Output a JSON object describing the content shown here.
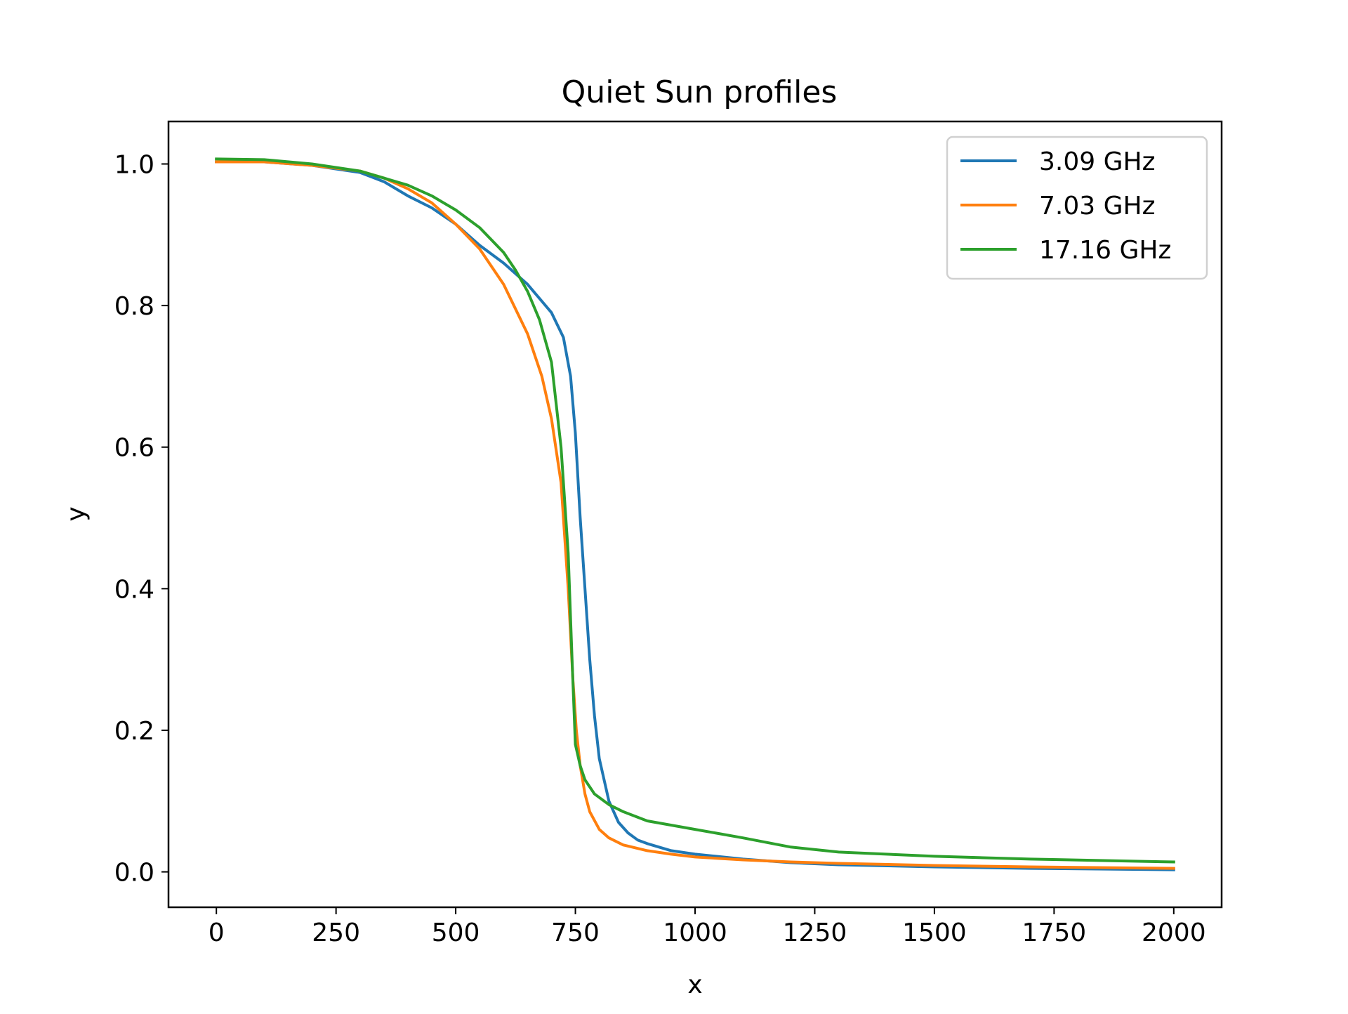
{
  "chart_data": {
    "type": "line",
    "title": "Quiet Sun profiles",
    "xlabel": "x",
    "ylabel": "y",
    "xlim": [
      -100,
      2100
    ],
    "ylim": [
      -0.05,
      1.06
    ],
    "xticks": [
      0,
      250,
      500,
      750,
      1000,
      1250,
      1500,
      1750,
      2000
    ],
    "xtick_labels": [
      "0",
      "250",
      "500",
      "750",
      "1000",
      "1250",
      "1500",
      "1750",
      "2000"
    ],
    "yticks": [
      0.0,
      0.2,
      0.4,
      0.6,
      0.8,
      1.0
    ],
    "ytick_labels": [
      "0.0",
      "0.2",
      "0.4",
      "0.6",
      "0.8",
      "1.0"
    ],
    "grid": false,
    "legend_position": "top-right",
    "series": [
      {
        "name": "3.09 GHz",
        "color": "#1f77b4",
        "x": [
          0,
          100,
          200,
          300,
          350,
          400,
          450,
          500,
          550,
          600,
          650,
          700,
          725,
          740,
          750,
          760,
          770,
          780,
          790,
          800,
          820,
          840,
          860,
          880,
          900,
          950,
          1000,
          1100,
          1200,
          1300,
          1500,
          1700,
          2000
        ],
        "y": [
          1.003,
          1.003,
          0.998,
          0.988,
          0.975,
          0.955,
          0.938,
          0.915,
          0.885,
          0.86,
          0.83,
          0.79,
          0.755,
          0.7,
          0.62,
          0.5,
          0.4,
          0.3,
          0.22,
          0.16,
          0.1,
          0.07,
          0.055,
          0.045,
          0.04,
          0.03,
          0.025,
          0.018,
          0.013,
          0.01,
          0.007,
          0.005,
          0.003
        ]
      },
      {
        "name": "7.03 GHz",
        "color": "#ff7f0e",
        "x": [
          0,
          100,
          200,
          300,
          350,
          400,
          450,
          500,
          550,
          600,
          650,
          680,
          700,
          720,
          735,
          745,
          752,
          760,
          770,
          780,
          800,
          820,
          850,
          900,
          950,
          1000,
          1100,
          1200,
          1300,
          1500,
          1700,
          2000
        ],
        "y": [
          1.003,
          1.003,
          0.998,
          0.99,
          0.98,
          0.965,
          0.945,
          0.915,
          0.88,
          0.83,
          0.76,
          0.7,
          0.64,
          0.55,
          0.4,
          0.27,
          0.2,
          0.15,
          0.11,
          0.085,
          0.06,
          0.048,
          0.038,
          0.03,
          0.025,
          0.021,
          0.017,
          0.014,
          0.012,
          0.009,
          0.007,
          0.005
        ]
      },
      {
        "name": "17.16 GHz",
        "color": "#2ca02c",
        "x": [
          0,
          100,
          200,
          300,
          350,
          400,
          450,
          500,
          550,
          600,
          625,
          650,
          675,
          700,
          720,
          735,
          743,
          750,
          755,
          760,
          770,
          790,
          820,
          850,
          900,
          1000,
          1100,
          1200,
          1300,
          1500,
          1700,
          2000
        ],
        "y": [
          1.007,
          1.006,
          1.0,
          0.99,
          0.98,
          0.97,
          0.955,
          0.935,
          0.91,
          0.875,
          0.85,
          0.82,
          0.78,
          0.72,
          0.6,
          0.45,
          0.3,
          0.18,
          0.165,
          0.15,
          0.13,
          0.11,
          0.095,
          0.085,
          0.072,
          0.06,
          0.048,
          0.035,
          0.028,
          0.022,
          0.018,
          0.014
        ]
      }
    ]
  }
}
